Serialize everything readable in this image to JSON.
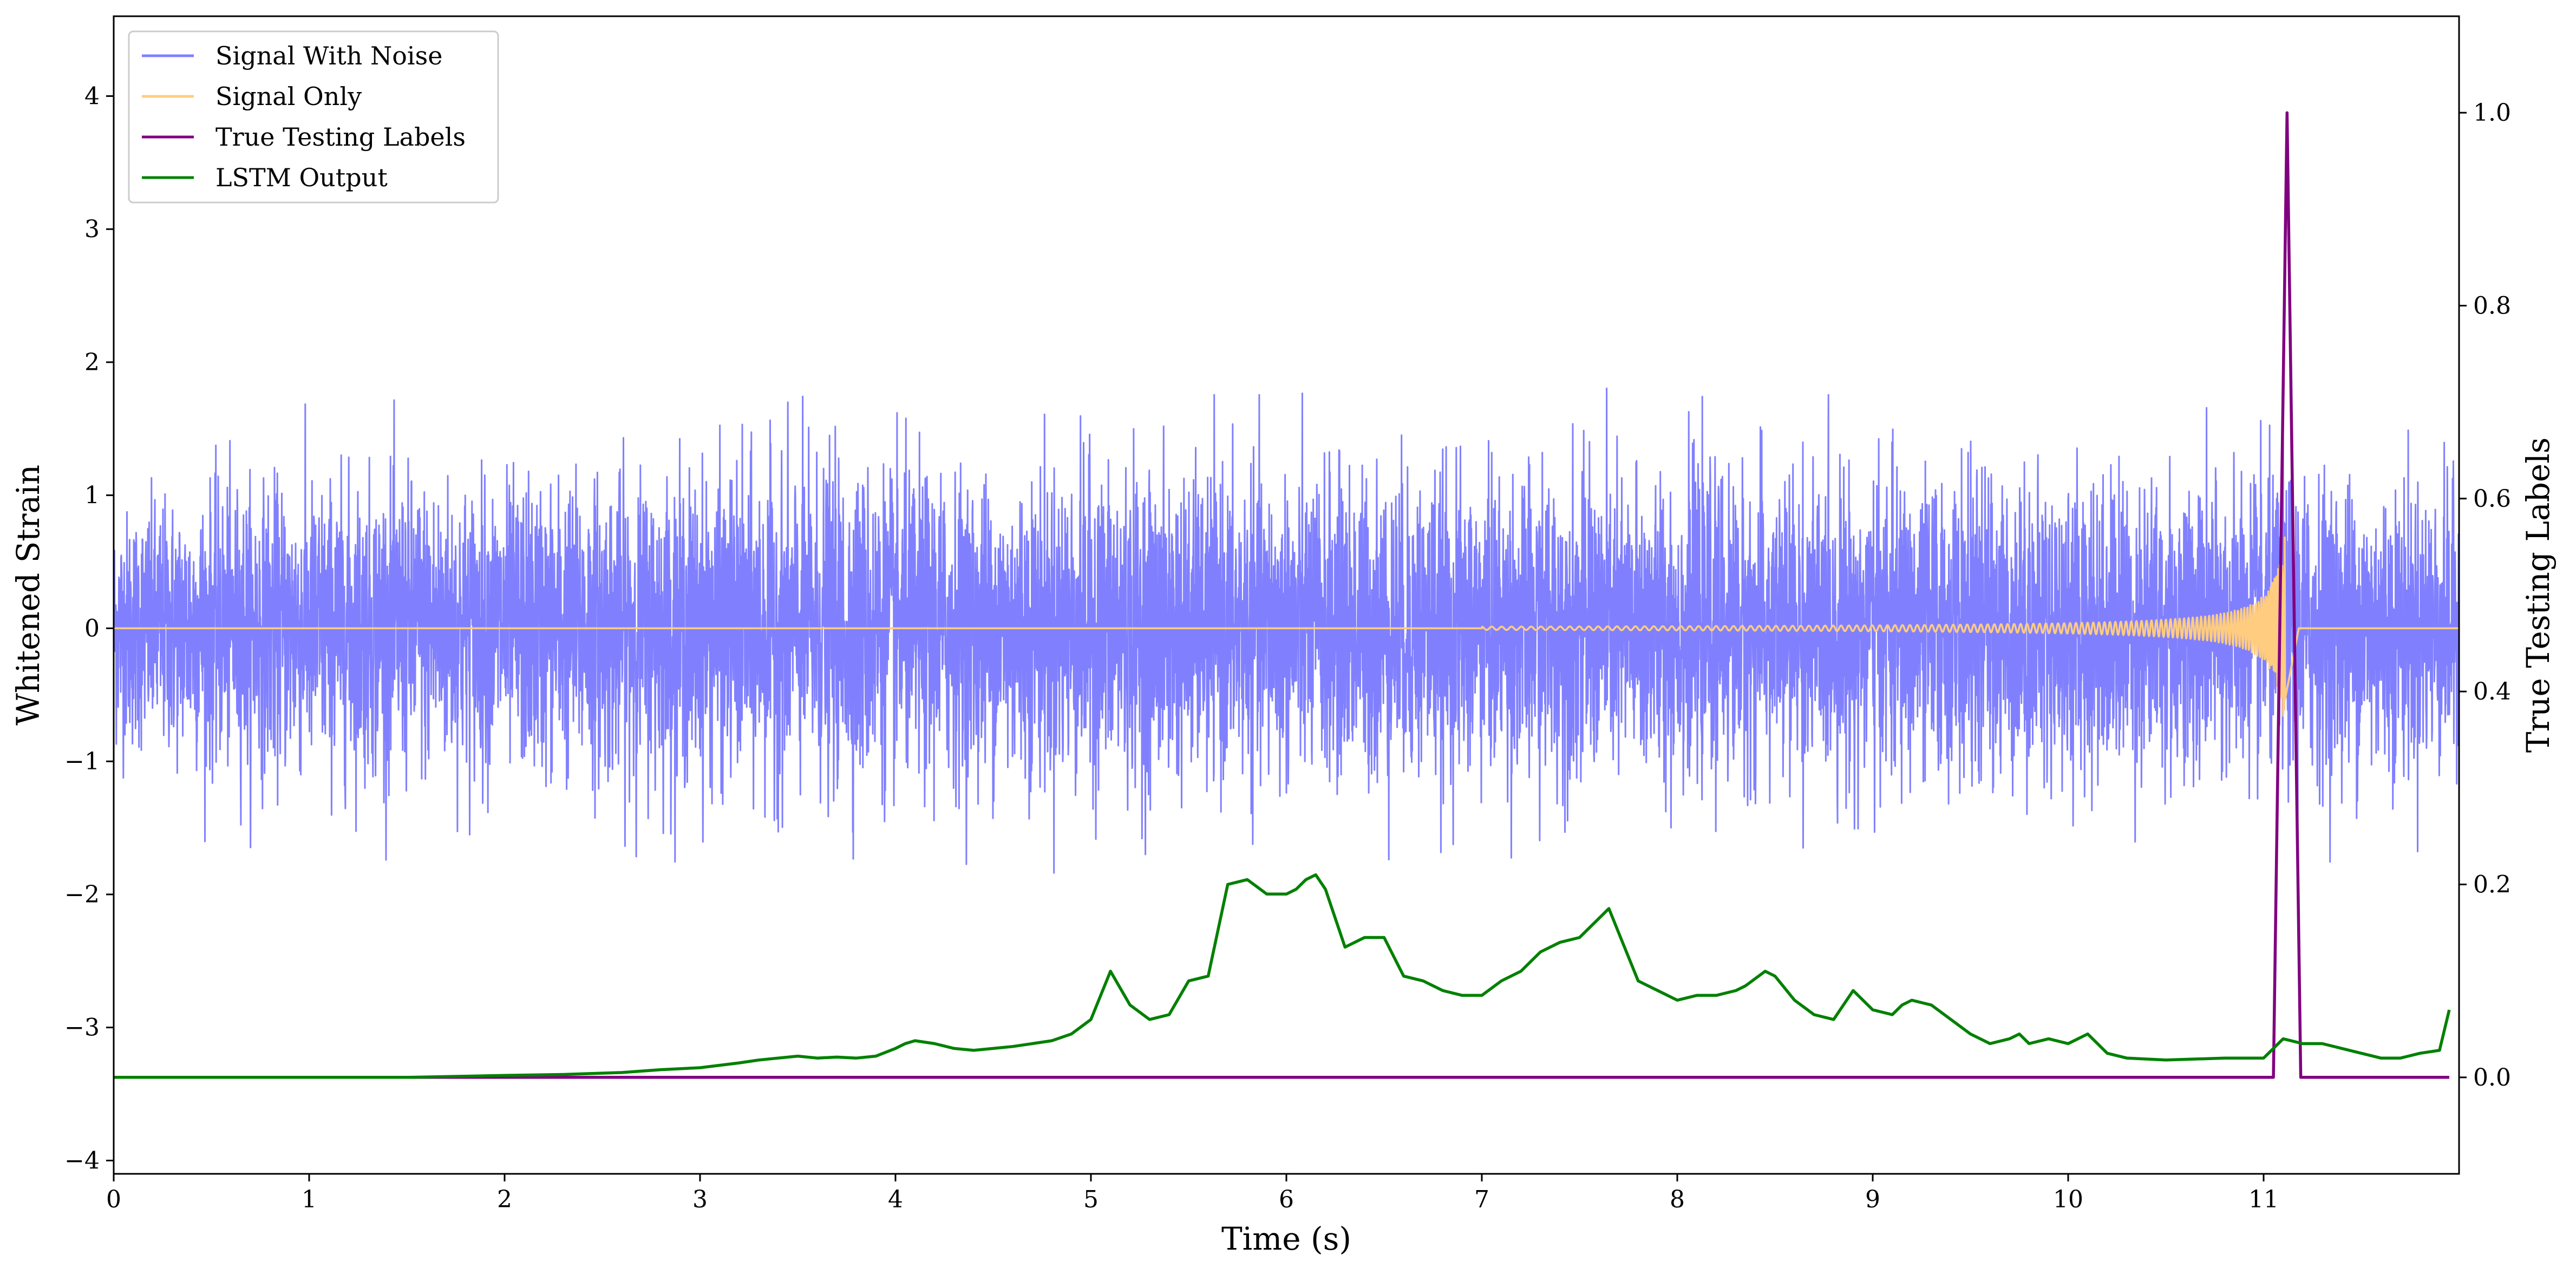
{
  "chart_data": {
    "type": "line",
    "title": "",
    "xlabel": "Time (s)",
    "ylabel": "Whitened Strain",
    "y2label": "True Testing Labels",
    "xlim": [
      0,
      12
    ],
    "ylim": [
      -4.1,
      4.6
    ],
    "y2lim": [
      -0.1,
      1.1
    ],
    "x_ticks": [
      0,
      1,
      2,
      3,
      4,
      5,
      6,
      7,
      8,
      9,
      10,
      11
    ],
    "y_ticks": [
      -4,
      -3,
      -2,
      -1,
      0,
      1,
      2,
      3,
      4
    ],
    "y2_ticks": [
      0.0,
      0.2,
      0.4,
      0.6,
      0.8,
      1.0
    ],
    "x_tick_labels": [
      "0",
      "1",
      "2",
      "3",
      "4",
      "5",
      "6",
      "7",
      "8",
      "9",
      "10",
      "11"
    ],
    "y_tick_labels": [
      "−4",
      "−3",
      "−2",
      "−1",
      "0",
      "1",
      "2",
      "3",
      "4"
    ],
    "y2_tick_labels": [
      "0.0",
      "0.2",
      "0.4",
      "0.6",
      "0.8",
      "1.0"
    ],
    "legend_position": "top-left",
    "grid": false,
    "series": [
      {
        "name": "Signal With Noise",
        "color": "#8080ff",
        "axis": "left",
        "kind": "noise",
        "envelope": [
          [
            0.0,
            1.0
          ],
          [
            0.5,
            1.2
          ],
          [
            1.0,
            1.25
          ],
          [
            1.5,
            1.3
          ],
          [
            2.0,
            1.25
          ],
          [
            2.5,
            1.3
          ],
          [
            3.0,
            1.3
          ],
          [
            3.5,
            1.4
          ],
          [
            4.0,
            1.35
          ],
          [
            4.5,
            1.3
          ],
          [
            5.0,
            1.4
          ],
          [
            5.5,
            1.3
          ],
          [
            6.0,
            1.3
          ],
          [
            6.5,
            1.35
          ],
          [
            7.0,
            1.3
          ],
          [
            7.5,
            1.35
          ],
          [
            8.0,
            1.3
          ],
          [
            8.5,
            1.3
          ],
          [
            9.0,
            1.3
          ],
          [
            9.5,
            1.3
          ],
          [
            10.0,
            1.3
          ],
          [
            10.5,
            1.3
          ],
          [
            11.0,
            1.3
          ],
          [
            11.5,
            1.3
          ],
          [
            12.0,
            1.2
          ]
        ]
      },
      {
        "name": "Signal Only",
        "color": "#ffcc80",
        "axis": "left",
        "kind": "chirp",
        "chirp_start": 7.0,
        "chirp_peak_time": 11.1,
        "chirp_peak_amplitude": 1.05
      },
      {
        "name": "True Testing Labels",
        "color": "#800080",
        "axis": "right",
        "x": [
          0,
          11.05,
          11.12,
          11.19,
          11.95
        ],
        "y": [
          0.0,
          0.0,
          1.0,
          0.0,
          0.0
        ]
      },
      {
        "name": "LSTM Output",
        "color": "#008000",
        "axis": "right",
        "x": [
          0,
          0.5,
          1.0,
          1.5,
          2.0,
          2.3,
          2.6,
          2.8,
          3.0,
          3.2,
          3.3,
          3.4,
          3.5,
          3.6,
          3.7,
          3.8,
          3.9,
          4.0,
          4.05,
          4.1,
          4.2,
          4.3,
          4.4,
          4.5,
          4.6,
          4.7,
          4.8,
          4.9,
          5.0,
          5.1,
          5.2,
          5.3,
          5.4,
          5.5,
          5.6,
          5.7,
          5.8,
          5.9,
          6.0,
          6.05,
          6.1,
          6.15,
          6.2,
          6.3,
          6.4,
          6.5,
          6.6,
          6.7,
          6.8,
          6.9,
          7.0,
          7.1,
          7.2,
          7.3,
          7.4,
          7.5,
          7.6,
          7.65,
          7.7,
          7.8,
          7.9,
          8.0,
          8.1,
          8.2,
          8.3,
          8.35,
          8.45,
          8.5,
          8.6,
          8.7,
          8.8,
          8.9,
          9.0,
          9.1,
          9.15,
          9.2,
          9.3,
          9.4,
          9.5,
          9.6,
          9.7,
          9.75,
          9.8,
          9.9,
          10.0,
          10.1,
          10.2,
          10.3,
          10.5,
          10.8,
          11.0,
          11.1,
          11.2,
          11.3,
          11.4,
          11.6,
          11.7,
          11.8,
          11.9,
          11.95
        ],
        "y": [
          0.0,
          0.0,
          0.0,
          0.0,
          0.002,
          0.003,
          0.005,
          0.008,
          0.01,
          0.015,
          0.018,
          0.02,
          0.022,
          0.02,
          0.021,
          0.02,
          0.022,
          0.03,
          0.035,
          0.038,
          0.035,
          0.03,
          0.028,
          0.03,
          0.032,
          0.035,
          0.038,
          0.045,
          0.06,
          0.11,
          0.075,
          0.06,
          0.065,
          0.1,
          0.105,
          0.2,
          0.205,
          0.19,
          0.19,
          0.195,
          0.205,
          0.21,
          0.195,
          0.135,
          0.145,
          0.145,
          0.105,
          0.1,
          0.09,
          0.085,
          0.085,
          0.1,
          0.11,
          0.13,
          0.14,
          0.145,
          0.165,
          0.175,
          0.15,
          0.1,
          0.09,
          0.08,
          0.085,
          0.085,
          0.09,
          0.095,
          0.11,
          0.105,
          0.08,
          0.065,
          0.06,
          0.09,
          0.07,
          0.065,
          0.075,
          0.08,
          0.075,
          0.06,
          0.045,
          0.035,
          0.04,
          0.045,
          0.035,
          0.04,
          0.035,
          0.045,
          0.025,
          0.02,
          0.018,
          0.02,
          0.02,
          0.04,
          0.035,
          0.035,
          0.03,
          0.02,
          0.02,
          0.025,
          0.028,
          0.07
        ]
      }
    ]
  }
}
